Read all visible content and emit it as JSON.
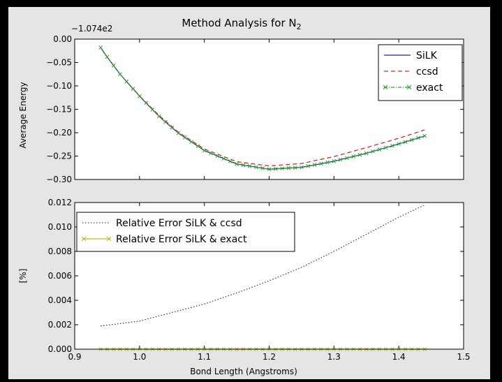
{
  "chart_data": [
    {
      "type": "line",
      "title": "Method Analysis for N",
      "title_subscript": "2",
      "ylabel": "Average Energy",
      "offset_label": "−1.074e2",
      "xlim": [
        0.9,
        1.5
      ],
      "ylim": [
        -0.3,
        0.0
      ],
      "x_ticks": [
        0.9,
        1.0,
        1.1,
        1.2,
        1.3,
        1.4,
        1.5
      ],
      "y_ticks": [
        0.0,
        -0.05,
        -0.1,
        -0.15,
        -0.2,
        -0.25,
        -0.3
      ],
      "y_tick_labels": [
        "0.00",
        "−0.05",
        "−0.10",
        "−0.15",
        "−0.20",
        "−0.25",
        "−0.30"
      ],
      "legend_position": "top-right",
      "series": [
        {
          "name": "SiLK",
          "color": "#1f1fb4",
          "style": "solid",
          "x": [
            0.94,
            0.95,
            0.97,
            1.0,
            1.03,
            1.06,
            1.1,
            1.15,
            1.2,
            1.25,
            1.3,
            1.35,
            1.4,
            1.44
          ],
          "y": [
            -0.018,
            -0.038,
            -0.075,
            -0.122,
            -0.165,
            -0.201,
            -0.238,
            -0.267,
            -0.278,
            -0.274,
            -0.261,
            -0.244,
            -0.224,
            -0.207
          ]
        },
        {
          "name": "ccsd",
          "color": "#d62728",
          "style": "dashed",
          "x": [
            0.94,
            0.95,
            0.97,
            1.0,
            1.03,
            1.06,
            1.1,
            1.15,
            1.2,
            1.25,
            1.3,
            1.35,
            1.4,
            1.44
          ],
          "y": [
            -0.018,
            -0.038,
            -0.075,
            -0.121,
            -0.163,
            -0.199,
            -0.235,
            -0.262,
            -0.271,
            -0.266,
            -0.251,
            -0.232,
            -0.212,
            -0.194
          ]
        },
        {
          "name": "exact",
          "color": "#2ca02c",
          "style": "dashdot-x",
          "x": [
            0.94,
            0.95,
            0.97,
            1.0,
            1.03,
            1.06,
            1.1,
            1.15,
            1.2,
            1.25,
            1.3,
            1.35,
            1.4,
            1.44
          ],
          "y": [
            -0.018,
            -0.038,
            -0.075,
            -0.122,
            -0.165,
            -0.201,
            -0.238,
            -0.267,
            -0.278,
            -0.274,
            -0.261,
            -0.244,
            -0.224,
            -0.207
          ]
        }
      ]
    },
    {
      "type": "line",
      "xlabel": "Bond Length (Angstroms)",
      "ylabel": "[%]",
      "xlim": [
        0.9,
        1.5
      ],
      "ylim": [
        0.0,
        0.012
      ],
      "x_ticks": [
        0.9,
        1.0,
        1.1,
        1.2,
        1.3,
        1.4,
        1.5
      ],
      "x_tick_labels": [
        "0.9",
        "1.0",
        "1.1",
        "1.2",
        "1.3",
        "1.4",
        "1.5"
      ],
      "y_ticks": [
        0.0,
        0.002,
        0.004,
        0.006,
        0.008,
        0.01,
        0.012
      ],
      "y_tick_labels": [
        "0.000",
        "0.002",
        "0.004",
        "0.006",
        "0.008",
        "0.010",
        "0.012"
      ],
      "legend_position": "top-left",
      "series": [
        {
          "name": "Relative Error SiLK & ccsd",
          "color": "#444444",
          "style": "dotted",
          "x": [
            0.94,
            1.0,
            1.05,
            1.1,
            1.15,
            1.2,
            1.25,
            1.3,
            1.35,
            1.4,
            1.44
          ],
          "y": [
            0.0019,
            0.0023,
            0.003,
            0.0037,
            0.0046,
            0.0056,
            0.0067,
            0.008,
            0.0094,
            0.0108,
            0.0118
          ]
        },
        {
          "name": "Relative Error SiLK & exact",
          "color": "#bcbd22",
          "style": "solid-x",
          "x": [
            0.94,
            1.0,
            1.05,
            1.1,
            1.15,
            1.2,
            1.25,
            1.3,
            1.35,
            1.4,
            1.44
          ],
          "y": [
            0.0,
            0.0,
            0.0,
            0.0,
            0.0,
            0.0,
            0.0,
            0.0,
            0.0,
            0.0,
            0.0
          ]
        }
      ]
    }
  ]
}
